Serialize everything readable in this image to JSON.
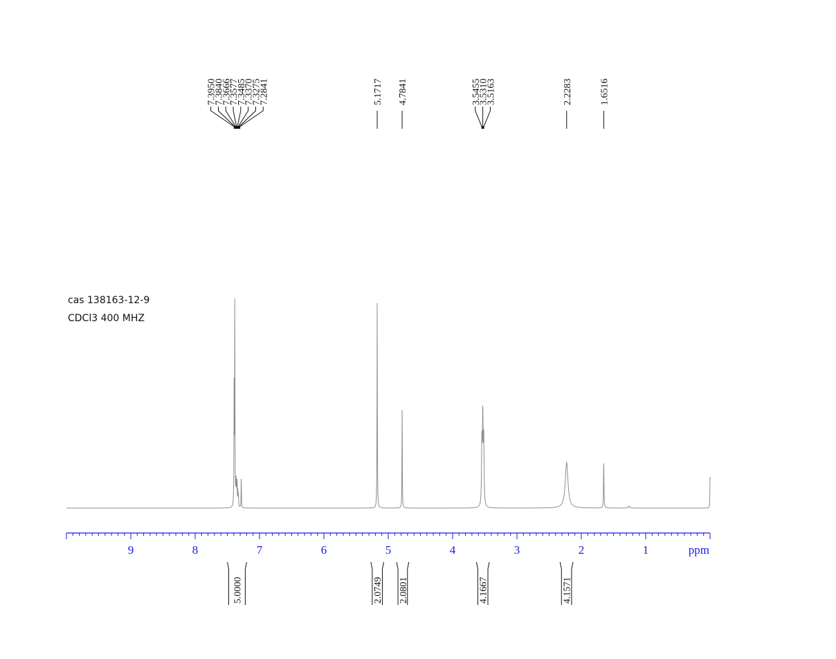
{
  "sample_info": {
    "line1": "cas  138163-12-9",
    "line2": "CDCl3   400 MHZ"
  },
  "colors": {
    "spectrum": "#8c8c8c",
    "axis": "#1a1ae6",
    "annotation": "#111111"
  },
  "chart_data": {
    "type": "line",
    "title": "",
    "xlabel": "ppm",
    "ylabel": "",
    "x_reversed": true,
    "xlim": [
      10.0,
      0.0
    ],
    "ylim": [
      0,
      1.0
    ],
    "x_ticks": [
      "9",
      "8",
      "7",
      "6",
      "5",
      "4",
      "3",
      "2",
      "1"
    ],
    "x_tick_values": [
      9,
      8,
      7,
      6,
      5,
      4,
      3,
      2,
      1
    ],
    "grid": false,
    "peaks": [
      {
        "ppm": 7.395,
        "height": 0.56,
        "width": 0.003
      },
      {
        "ppm": 7.384,
        "height": 0.98,
        "width": 0.003
      },
      {
        "ppm": 7.3666,
        "height": 0.12,
        "width": 0.003
      },
      {
        "ppm": 7.3577,
        "height": 0.1,
        "width": 0.003
      },
      {
        "ppm": 7.3485,
        "height": 0.12,
        "width": 0.003
      },
      {
        "ppm": 7.337,
        "height": 0.08,
        "width": 0.003
      },
      {
        "ppm": 7.3275,
        "height": 0.06,
        "width": 0.003
      },
      {
        "ppm": 7.2841,
        "height": 0.15,
        "width": 0.003
      },
      {
        "ppm": 5.1717,
        "height": 1.0,
        "width": 0.003
      },
      {
        "ppm": 4.7841,
        "height": 0.51,
        "width": 0.003
      },
      {
        "ppm": 3.5455,
        "height": 0.3,
        "width": 0.006
      },
      {
        "ppm": 3.531,
        "height": 0.42,
        "width": 0.006
      },
      {
        "ppm": 3.5163,
        "height": 0.31,
        "width": 0.006
      },
      {
        "ppm": 2.2283,
        "height": 0.22,
        "width": 0.025
      },
      {
        "ppm": 1.6516,
        "height": 0.23,
        "width": 0.004
      },
      {
        "ppm": 1.26,
        "height": 0.01,
        "width": 0.01
      },
      {
        "ppm": 0.0,
        "height": 0.15,
        "width": 0.003
      }
    ],
    "peak_labels": [
      {
        "group": "aromatic",
        "values": [
          "7.3950",
          "7.3840",
          "7.3666",
          "7.3577",
          "7.3485",
          "7.3370",
          "7.3275",
          "7.2841"
        ],
        "anchor_ppm": 7.35,
        "anchor_half_width": 0.045
      },
      {
        "group": "s1",
        "values": [
          "5.1717"
        ],
        "anchor_ppm": 5.1717,
        "anchor_half_width": 0
      },
      {
        "group": "s2",
        "values": [
          "4.7841"
        ],
        "anchor_ppm": 4.7841,
        "anchor_half_width": 0
      },
      {
        "group": "triplet",
        "values": [
          "3.5455",
          "3.5310",
          "3.5163"
        ],
        "anchor_ppm": 3.531,
        "anchor_half_width": 0.012
      },
      {
        "group": "s3",
        "values": [
          "2.2283"
        ],
        "anchor_ppm": 2.2283,
        "anchor_half_width": 0
      },
      {
        "group": "s4",
        "values": [
          "1.6516"
        ],
        "anchor_ppm": 1.6516,
        "anchor_half_width": 0
      }
    ],
    "integrals": [
      {
        "value": "5.0000",
        "from_ppm": 7.5,
        "to_ppm": 7.2
      },
      {
        "value": "2.0749",
        "from_ppm": 5.27,
        "to_ppm": 5.07
      },
      {
        "value": "2.0801",
        "from_ppm": 4.87,
        "to_ppm": 4.68
      },
      {
        "value": "4.1667",
        "from_ppm": 3.63,
        "to_ppm": 3.43
      },
      {
        "value": "4.1571",
        "from_ppm": 2.33,
        "to_ppm": 2.13
      }
    ]
  }
}
